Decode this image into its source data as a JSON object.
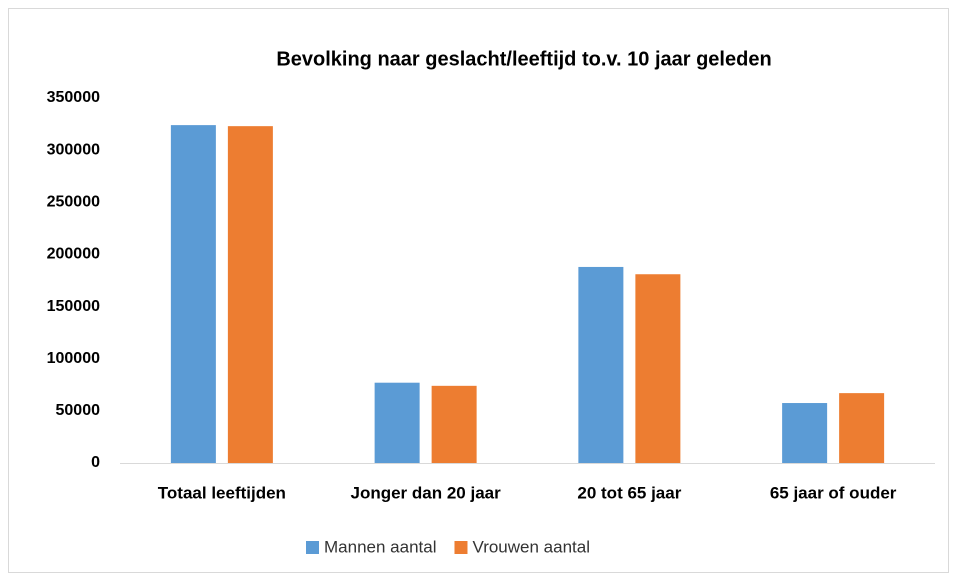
{
  "chart_data": {
    "type": "bar",
    "title": "Bevolking naar geslacht/leeftijd to.v. 10 jaar geleden",
    "categories": [
      "Totaal leeftijden",
      "Jonger dan 20 jaar",
      "20 tot 65 jaar",
      "65 jaar of ouder"
    ],
    "series": [
      {
        "name": "Mannen aantal",
        "color": "#5b9bd5",
        "values": [
          324000,
          77000,
          188000,
          57500
        ]
      },
      {
        "name": "Vrouwen aantal",
        "color": "#ed7d31",
        "values": [
          323000,
          74000,
          181000,
          67000
        ]
      }
    ],
    "ylim": [
      0,
      350000
    ],
    "yticks": [
      0,
      50000,
      100000,
      150000,
      200000,
      250000,
      300000,
      350000
    ],
    "grid": false,
    "legend": "bottom"
  }
}
